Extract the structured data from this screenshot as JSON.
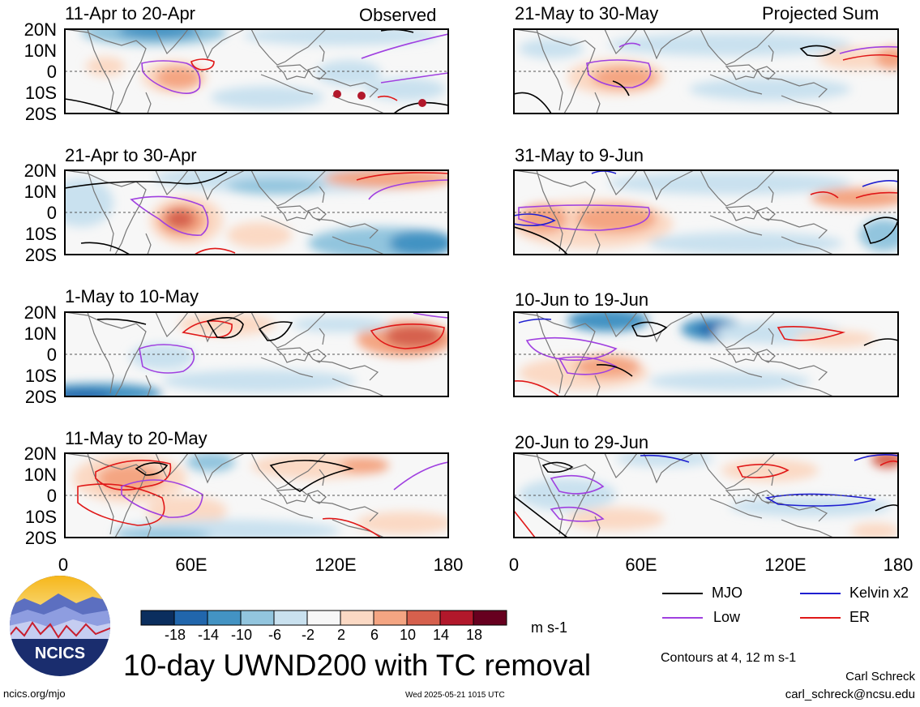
{
  "labels": {
    "observed": "Observed",
    "projected": "Projected Sum"
  },
  "lat_labels": [
    "20N",
    "10N",
    "0",
    "10S",
    "20S"
  ],
  "lon_labels": [
    "0",
    "60E",
    "120E",
    "180"
  ],
  "panels": [
    {
      "title": "11-Apr to 20-Apr"
    },
    {
      "title": "21-Apr to 30-Apr"
    },
    {
      "title": "1-May to 10-May"
    },
    {
      "title": "11-May to 20-May"
    },
    {
      "title": "21-May to 30-May"
    },
    {
      "title": "31-May to 9-Jun"
    },
    {
      "title": "10-Jun to 19-Jun"
    },
    {
      "title": "20-Jun to 29-Jun"
    }
  ],
  "colorbar": {
    "ticks": [
      "-18",
      "-14",
      "-10",
      "-6",
      "-2",
      "2",
      "6",
      "10",
      "14",
      "18"
    ],
    "units": "m s-1",
    "colors": [
      "#0b2e5e",
      "#2166ac",
      "#4393c3",
      "#92c5de",
      "#c9e1ef",
      "#f7f7f7",
      "#fbd9c4",
      "#f4a582",
      "#d6604d",
      "#b2182b",
      "#67001f"
    ]
  },
  "contour_legend": {
    "mjo": {
      "label": "MJO",
      "color": "#000000"
    },
    "kelvin": {
      "label": "Kelvin x2",
      "color": "#1f1fd0"
    },
    "low": {
      "label": "Low",
      "color": "#a040e0"
    },
    "er": {
      "label": "ER",
      "color": "#e01818"
    }
  },
  "note": "Contours at 4, 12 m s-1",
  "title": "10-day UWND200 with TC removal",
  "logo_text": "NCICS",
  "footer": {
    "left": "ncics.org/mjo",
    "center": "Wed 2025-05-21 1015 UTC",
    "author": "Carl Schreck",
    "email": "carl_schreck@ncsu.edu"
  }
}
